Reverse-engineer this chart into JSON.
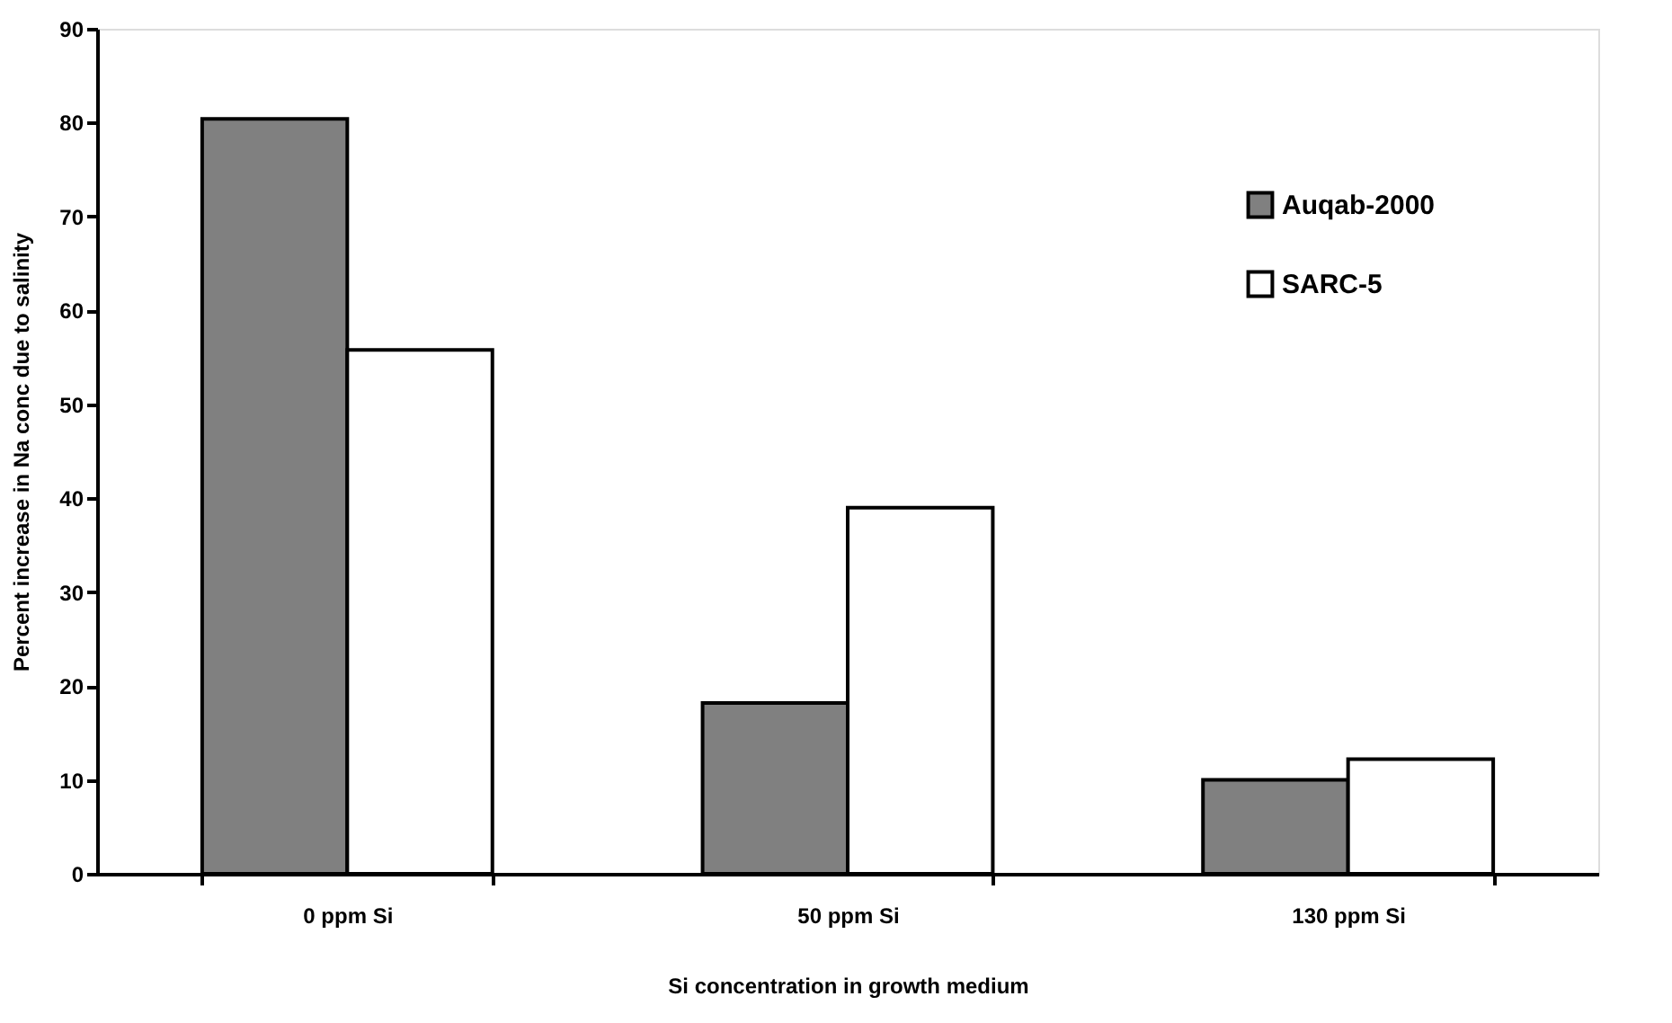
{
  "chart_data": {
    "type": "bar",
    "xlabel": "Si concentration in growth medium",
    "ylabel": "Percent increase in Na conc due to salinity",
    "categories": [
      "0 ppm Si",
      "50 ppm Si",
      "130 ppm Si"
    ],
    "series": [
      {
        "name": "Auqab-2000",
        "color": "#808080",
        "values": [
          80.4,
          18.2,
          10.0
        ]
      },
      {
        "name": "SARC-5",
        "color": "#ffffff",
        "values": [
          55.8,
          39.0,
          12.2
        ]
      }
    ],
    "ylim": [
      0,
      90
    ],
    "yticks": [
      0,
      10,
      20,
      30,
      40,
      50,
      60,
      70,
      80,
      90
    ],
    "grid": false,
    "legend": "top right"
  }
}
